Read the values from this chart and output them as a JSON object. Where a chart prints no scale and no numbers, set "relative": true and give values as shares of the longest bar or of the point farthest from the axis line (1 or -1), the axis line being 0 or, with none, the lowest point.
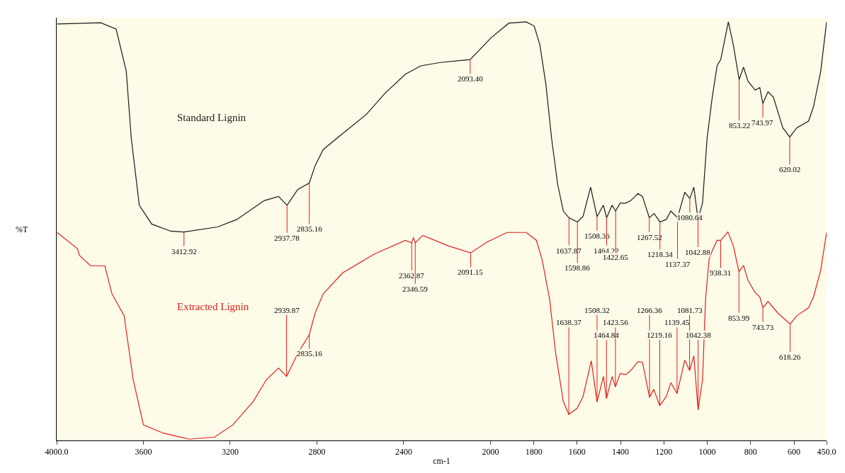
{
  "chart_data": {
    "type": "line",
    "relative": true,
    "xlabel": "cm-1",
    "ylabel": "%T",
    "xlim": [
      4000,
      450
    ],
    "xticks": [
      {
        "value": 4000,
        "label": "4000.0"
      },
      3600,
      3200,
      2800,
      2400,
      2000,
      1800,
      1600,
      1400,
      1200,
      1000,
      800,
      600,
      {
        "value": 450,
        "label": "450.0"
      }
    ],
    "grid": false,
    "legend": false,
    "marker": "none",
    "line_style": "solid",
    "series": [
      {
        "name": "Standard Lignin",
        "color": "#1a1a1a",
        "x": [
          3998,
          3797,
          3726,
          3679,
          3656,
          3619,
          3562,
          3474,
          3412.92,
          3258,
          3169,
          3043,
          2977,
          2937.78,
          2888,
          2835.16,
          2808,
          2771,
          2682,
          2574,
          2485,
          2392,
          2321,
          2232,
          2093.4,
          1997,
          1915,
          1835,
          1798,
          1772,
          1744,
          1718,
          1690,
          1664,
          1637.87,
          1598.86,
          1573,
          1538,
          1508.36,
          1479,
          1464.22,
          1439,
          1422.65,
          1402,
          1376,
          1353,
          1320,
          1299,
          1267.52,
          1245,
          1218.34,
          1189,
          1168,
          1137.37,
          1104,
          1080.64,
          1062,
          1042.88,
          1022,
          1001,
          978,
          955,
          938,
          903,
          880,
          853.22,
          833,
          812,
          779,
          758,
          743.97,
          720,
          695,
          652,
          620.02,
          587,
          533,
          510,
          477,
          450
        ],
        "values": [
          0.995,
          0.998,
          0.983,
          0.882,
          0.722,
          0.562,
          0.517,
          0.5,
          0.498,
          0.51,
          0.528,
          0.573,
          0.583,
          0.562,
          0.6,
          0.615,
          0.657,
          0.695,
          0.733,
          0.778,
          0.83,
          0.875,
          0.895,
          0.903,
          0.91,
          0.962,
          0.997,
          1.0,
          0.99,
          0.945,
          0.85,
          0.722,
          0.612,
          0.548,
          0.532,
          0.522,
          0.535,
          0.605,
          0.535,
          0.562,
          0.532,
          0.562,
          0.548,
          0.567,
          0.567,
          0.573,
          0.59,
          0.583,
          0.532,
          0.542,
          0.522,
          0.528,
          0.548,
          0.532,
          0.593,
          0.578,
          0.605,
          0.528,
          0.567,
          0.722,
          0.817,
          0.895,
          0.91,
          1.0,
          0.945,
          0.862,
          0.892,
          0.858,
          0.837,
          0.843,
          0.805,
          0.833,
          0.82,
          0.747,
          0.725,
          0.747,
          0.763,
          0.798,
          0.882,
          1.0
        ]
      },
      {
        "name": "Extracted Lignin",
        "color": "#e0201e",
        "x": [
          3998,
          3904,
          3895,
          3843,
          3797,
          3778,
          3745,
          3689,
          3647,
          3600,
          3506,
          3389,
          3272,
          3188,
          3094,
          3033,
          2977,
          2939.87,
          2888,
          2835.16,
          2808,
          2771,
          2682,
          2537,
          2392,
          2362.87,
          2355,
          2346.59,
          2312,
          2195,
          2091.15,
          2012,
          1924,
          1835,
          1788,
          1762,
          1727,
          1699,
          1664,
          1638.37,
          1600,
          1573,
          1535,
          1508.32,
          1479,
          1464.84,
          1439,
          1423.56,
          1402,
          1376,
          1353,
          1320,
          1299,
          1266.36,
          1247,
          1219.16,
          1189,
          1168,
          1139.45,
          1104,
          1081.73,
          1062,
          1042.38,
          1022,
          1008,
          992,
          978,
          955,
          938.31,
          905,
          880,
          853.99,
          833,
          812,
          779,
          758,
          743.73,
          720,
          676,
          618.26,
          587,
          533,
          510,
          477,
          450
        ],
        "values": [
          0.497,
          0.458,
          0.442,
          0.417,
          0.417,
          0.417,
          0.35,
          0.298,
          0.145,
          0.037,
          0.017,
          0.003,
          0.008,
          0.037,
          0.093,
          0.145,
          0.173,
          0.153,
          0.208,
          0.253,
          0.305,
          0.35,
          0.4,
          0.445,
          0.478,
          0.472,
          0.485,
          0.472,
          0.49,
          0.465,
          0.448,
          0.475,
          0.497,
          0.497,
          0.478,
          0.433,
          0.337,
          0.208,
          0.093,
          0.062,
          0.077,
          0.105,
          0.19,
          0.092,
          0.153,
          0.1,
          0.153,
          0.128,
          0.16,
          0.157,
          0.167,
          0.188,
          0.187,
          0.103,
          0.122,
          0.083,
          0.105,
          0.138,
          0.112,
          0.192,
          0.167,
          0.202,
          0.073,
          0.145,
          0.337,
          0.433,
          0.452,
          0.478,
          0.478,
          0.498,
          0.465,
          0.403,
          0.418,
          0.382,
          0.353,
          0.343,
          0.317,
          0.332,
          0.305,
          0.278,
          0.298,
          0.317,
          0.343,
          0.407,
          0.497
        ]
      }
    ],
    "annotations": [
      {
        "text": "3412.92",
        "x": 3412.92,
        "y": 0.498
      },
      {
        "text": "2937.78",
        "x": 2937.78,
        "y": 0.562
      },
      {
        "text": "2835.16",
        "x": 2835.16,
        "y": 0.615
      },
      {
        "text": "2093.40",
        "x": 2093.4,
        "y": 0.91
      },
      {
        "text": "1637.87",
        "x": 1637.87,
        "y": 0.532
      },
      {
        "text": "1598.86",
        "x": 1598.86,
        "y": 0.522
      },
      {
        "text": "1508.36",
        "x": 1508.36,
        "y": 0.535
      },
      {
        "text": "1464.22",
        "x": 1464.22,
        "y": 0.532
      },
      {
        "text": "1422.65",
        "x": 1422.65,
        "y": 0.548
      },
      {
        "text": "1267.52",
        "x": 1267.52,
        "y": 0.532
      },
      {
        "text": "1218.34",
        "x": 1218.34,
        "y": 0.522
      },
      {
        "text": "1137.37",
        "x": 1137.37,
        "y": 0.532
      },
      {
        "text": "1080.64",
        "x": 1080.64,
        "y": 0.578
      },
      {
        "text": "1042.88",
        "x": 1042.88,
        "y": 0.528
      },
      {
        "text": "853.22",
        "x": 853.22,
        "y": 0.862
      },
      {
        "text": "743.97",
        "x": 743.97,
        "y": 0.805
      },
      {
        "text": "620.02",
        "x": 620.02,
        "y": 0.725
      },
      {
        "text": "2939.87",
        "x": 2939.87,
        "y": 0.153
      },
      {
        "text": "2835.16",
        "x": 2835.16,
        "y": 0.253
      },
      {
        "text": "2362.87",
        "x": 2362.87,
        "y": 0.472
      },
      {
        "text": "2346.59",
        "x": 2346.59,
        "y": 0.472
      },
      {
        "text": "2091.15",
        "x": 2091.15,
        "y": 0.448
      },
      {
        "text": "1638.37",
        "x": 1638.37,
        "y": 0.062
      },
      {
        "text": "1508.32",
        "x": 1508.32,
        "y": 0.092
      },
      {
        "text": "1464.84",
        "x": 1464.84,
        "y": 0.1
      },
      {
        "text": "1423.56",
        "x": 1423.56,
        "y": 0.128
      },
      {
        "text": "1266.36",
        "x": 1266.36,
        "y": 0.103
      },
      {
        "text": "1219.16",
        "x": 1219.16,
        "y": 0.083
      },
      {
        "text": "1139.45",
        "x": 1139.45,
        "y": 0.112
      },
      {
        "text": "1081.73",
        "x": 1081.73,
        "y": 0.167
      },
      {
        "text": "1042.38",
        "x": 1042.38,
        "y": 0.073
      },
      {
        "text": "938.31",
        "x": 938.31,
        "y": 0.478
      },
      {
        "text": "853.99",
        "x": 853.99,
        "y": 0.403
      },
      {
        "text": "743.73",
        "x": 743.73,
        "y": 0.317
      },
      {
        "text": "618.26",
        "x": 618.26,
        "y": 0.278
      }
    ]
  }
}
